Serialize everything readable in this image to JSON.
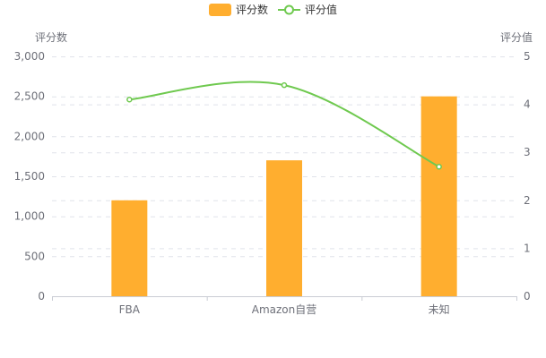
{
  "chart_data": {
    "type": "bar+line",
    "categories": [
      "FBA",
      "Amazon自营",
      "未知"
    ],
    "series": [
      {
        "name": "评分数",
        "type": "bar",
        "axis": "left",
        "values": [
          1200,
          1700,
          2500
        ]
      },
      {
        "name": "评分值",
        "type": "line",
        "axis": "right",
        "values": [
          4.1,
          4.4,
          2.7
        ]
      }
    ],
    "left_axis": {
      "label": "评分数",
      "min": 0,
      "max": 3000,
      "ticks": [
        0,
        500,
        1000,
        1500,
        2000,
        2500,
        3000
      ],
      "tick_labels": [
        "0",
        "500",
        "1,000",
        "1,500",
        "2,000",
        "2,500",
        "3,000"
      ]
    },
    "right_axis": {
      "label": "评分值",
      "min": 0,
      "max": 5,
      "ticks": [
        0,
        1,
        2,
        3,
        4,
        5
      ],
      "tick_labels": [
        "0",
        "1",
        "2",
        "3",
        "4",
        "5"
      ]
    },
    "legend": {
      "position": "top-center",
      "items": [
        "评分数",
        "评分值"
      ]
    },
    "colors": {
      "bar": "#ffae2f",
      "line": "#6fc94f",
      "grid": "#e0e3ea",
      "axis": "#c9ccd4",
      "text": "#6e7079"
    },
    "grid": true
  }
}
